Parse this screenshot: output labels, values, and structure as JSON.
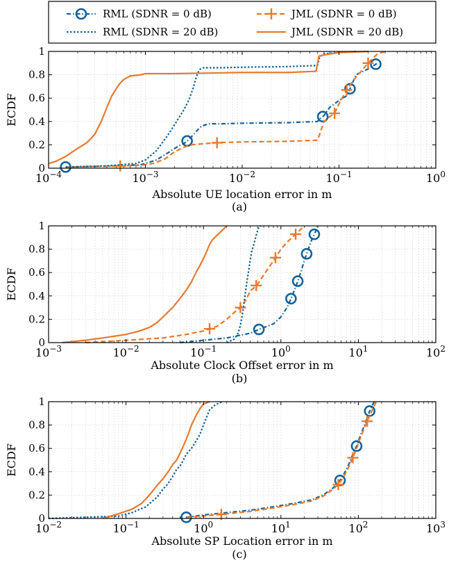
{
  "legend": {
    "entries": [
      {
        "label": "RML (SDNR = 0 dB)",
        "series": "rml0"
      },
      {
        "label": "JML (SDNR = 0 dB)",
        "series": "jml0"
      },
      {
        "label": "RML (SDNR = 20 dB)",
        "series": "rml20"
      },
      {
        "label": "JML (SDNR = 20 dB)",
        "series": "jml20"
      }
    ]
  },
  "colors": {
    "rml": "#16629a",
    "jml": "#e8792c",
    "grid": "#c8c8c8"
  },
  "chart_data": [
    {
      "type": "line",
      "panel_label": "(a)",
      "xlabel": "Absolute UE location error in m",
      "ylabel": "ECDF",
      "xscale": "log",
      "xlim": [
        0.0001,
        1
      ],
      "ylim": [
        0,
        1
      ],
      "xticks": [
        {
          "value": 0.0001,
          "base": "10",
          "exp": "−4"
        },
        {
          "value": 0.001,
          "base": "10",
          "exp": "−3"
        },
        {
          "value": 0.01,
          "base": "10",
          "exp": "−2"
        },
        {
          "value": 0.1,
          "base": "10",
          "exp": "−1"
        },
        {
          "value": 1,
          "base": "10",
          "exp": "0"
        }
      ],
      "yticks": [
        "0",
        "0.2",
        "0.4",
        "0.6",
        "0.8",
        "1"
      ],
      "grid": true,
      "series": [
        {
          "key": "rml0",
          "style": "dashdot-circle",
          "color": "rml",
          "x": [
            0.00015,
            0.0003,
            0.0006,
            0.0009,
            0.0013,
            0.0017,
            0.0022,
            0.0026,
            0.003,
            0.0034,
            0.0038,
            0.0045,
            0.006,
            0.01,
            0.03,
            0.06,
            0.065,
            0.07,
            0.08,
            0.1,
            0.12,
            0.13,
            0.15,
            0.2,
            0.25
          ],
          "y": [
            0.01,
            0.015,
            0.02,
            0.03,
            0.07,
            0.13,
            0.19,
            0.22,
            0.27,
            0.32,
            0.36,
            0.38,
            0.38,
            0.385,
            0.39,
            0.4,
            0.43,
            0.45,
            0.52,
            0.58,
            0.62,
            0.68,
            0.8,
            0.85,
            0.9
          ],
          "markers_x": [
            0.00015,
            0.0027,
            0.068,
            0.13,
            0.24
          ]
        },
        {
          "key": "jml0",
          "style": "dashed-plus",
          "color": "jml",
          "x": [
            0.00015,
            0.0003,
            0.0006,
            0.0009,
            0.0012,
            0.0016,
            0.002,
            0.0025,
            0.003,
            0.004,
            0.006,
            0.01,
            0.03,
            0.06,
            0.065,
            0.07,
            0.08,
            0.09,
            0.1,
            0.12,
            0.15,
            0.2,
            0.25,
            0.3
          ],
          "y": [
            0.01,
            0.015,
            0.02,
            0.025,
            0.04,
            0.08,
            0.14,
            0.18,
            0.2,
            0.21,
            0.22,
            0.225,
            0.23,
            0.24,
            0.32,
            0.4,
            0.44,
            0.47,
            0.55,
            0.67,
            0.78,
            0.9,
            0.98,
            1.0
          ],
          "markers_x": [
            0.00055,
            0.0055,
            0.09,
            0.12,
            0.2
          ]
        },
        {
          "key": "rml20",
          "style": "dotted",
          "color": "rml",
          "x": [
            0.00015,
            0.0004,
            0.0008,
            0.001,
            0.0013,
            0.0017,
            0.0021,
            0.0025,
            0.0028,
            0.0031,
            0.0033,
            0.0035,
            0.0037,
            0.004,
            0.006,
            0.01,
            0.03,
            0.06,
            0.063,
            0.07,
            0.1,
            0.15
          ],
          "y": [
            0.01,
            0.02,
            0.04,
            0.07,
            0.15,
            0.28,
            0.4,
            0.5,
            0.58,
            0.68,
            0.76,
            0.82,
            0.85,
            0.86,
            0.86,
            0.865,
            0.87,
            0.88,
            0.95,
            0.98,
            0.99,
            1.0
          ]
        },
        {
          "key": "jml20",
          "style": "solid",
          "color": "jml",
          "x": [
            0.0001,
            0.00012,
            0.00015,
            0.0002,
            0.00025,
            0.0003,
            0.00035,
            0.0004,
            0.00045,
            0.0005,
            0.00055,
            0.0006,
            0.0007,
            0.0009,
            0.001,
            0.002,
            0.005,
            0.01,
            0.03,
            0.058,
            0.062,
            0.07,
            0.1,
            0.2
          ],
          "y": [
            0.04,
            0.06,
            0.1,
            0.17,
            0.22,
            0.29,
            0.4,
            0.52,
            0.62,
            0.68,
            0.73,
            0.76,
            0.79,
            0.8,
            0.81,
            0.81,
            0.815,
            0.82,
            0.82,
            0.83,
            0.96,
            0.97,
            0.99,
            1.0
          ]
        }
      ]
    },
    {
      "type": "line",
      "panel_label": "(b)",
      "xlabel": "Absolute Clock Offset error in m",
      "ylabel": "ECDF",
      "xscale": "log",
      "xlim": [
        0.001,
        100
      ],
      "ylim": [
        0,
        1
      ],
      "xticks": [
        {
          "value": 0.001,
          "base": "10",
          "exp": "−3"
        },
        {
          "value": 0.01,
          "base": "10",
          "exp": "−2"
        },
        {
          "value": 0.1,
          "base": "10",
          "exp": "−1"
        },
        {
          "value": 1,
          "base": "10",
          "exp": "0"
        },
        {
          "value": 10,
          "base": "10",
          "exp": "1"
        },
        {
          "value": 100,
          "base": "10",
          "exp": "2"
        }
      ],
      "yticks": [
        "0",
        "0.2",
        "0.4",
        "0.6",
        "0.8",
        "1"
      ],
      "grid": true,
      "series": [
        {
          "key": "rml0",
          "style": "dashdot-circle",
          "color": "rml",
          "x": [
            0.05,
            0.2,
            0.4,
            0.55,
            0.8,
            1.0,
            1.2,
            1.4,
            1.6,
            1.8,
            2.0,
            2.2,
            2.5,
            2.8,
            3.0
          ],
          "y": [
            0.0,
            0.04,
            0.08,
            0.12,
            0.16,
            0.22,
            0.3,
            0.4,
            0.5,
            0.6,
            0.7,
            0.78,
            0.88,
            0.95,
            1.0
          ],
          "markers_x": [
            0.52,
            1.35,
            1.65,
            2.15,
            2.7
          ]
        },
        {
          "key": "jml0",
          "style": "dashed-plus",
          "color": "jml",
          "x": [
            0.003,
            0.01,
            0.03,
            0.06,
            0.1,
            0.15,
            0.2,
            0.25,
            0.3,
            0.35,
            0.4,
            0.5,
            0.6,
            0.8,
            1.0,
            1.2,
            1.5,
            1.8,
            2.0
          ],
          "y": [
            0.0,
            0.02,
            0.04,
            0.07,
            0.1,
            0.14,
            0.2,
            0.26,
            0.3,
            0.36,
            0.44,
            0.5,
            0.58,
            0.7,
            0.8,
            0.86,
            0.92,
            0.97,
            1.0
          ],
          "markers_x": [
            0.12,
            0.3,
            0.48,
            0.85,
            1.55
          ]
        },
        {
          "key": "rml20",
          "style": "dotted",
          "color": "rml",
          "x": [
            0.2,
            0.25,
            0.28,
            0.3,
            0.32,
            0.34,
            0.36,
            0.38,
            0.4,
            0.42,
            0.45,
            0.48,
            0.5,
            0.52,
            0.55
          ],
          "y": [
            0.0,
            0.03,
            0.08,
            0.15,
            0.25,
            0.38,
            0.5,
            0.6,
            0.7,
            0.78,
            0.85,
            0.92,
            0.96,
            0.99,
            1.0
          ]
        },
        {
          "key": "jml20",
          "style": "solid",
          "color": "jml",
          "x": [
            0.0015,
            0.003,
            0.005,
            0.01,
            0.015,
            0.02,
            0.025,
            0.03,
            0.04,
            0.05,
            0.06,
            0.07,
            0.08,
            0.09,
            0.1,
            0.11,
            0.12,
            0.13,
            0.15,
            0.18,
            0.2
          ],
          "y": [
            0.0,
            0.02,
            0.04,
            0.07,
            0.1,
            0.13,
            0.17,
            0.22,
            0.3,
            0.38,
            0.45,
            0.52,
            0.6,
            0.66,
            0.72,
            0.78,
            0.84,
            0.88,
            0.92,
            0.97,
            1.0
          ]
        }
      ]
    },
    {
      "type": "line",
      "panel_label": "(c)",
      "xlabel": "Absolute SP Location error in m",
      "ylabel": "ECDF",
      "xscale": "log",
      "xlim": [
        0.01,
        1000
      ],
      "ylim": [
        0,
        1
      ],
      "xticks": [
        {
          "value": 0.01,
          "base": "10",
          "exp": "−2"
        },
        {
          "value": 0.1,
          "base": "10",
          "exp": "−1"
        },
        {
          "value": 1,
          "base": "10",
          "exp": "0"
        },
        {
          "value": 10,
          "base": "10",
          "exp": "1"
        },
        {
          "value": 100,
          "base": "10",
          "exp": "2"
        },
        {
          "value": 1000,
          "base": "10",
          "exp": "3"
        }
      ],
      "yticks": [
        "0",
        "0.2",
        "0.4",
        "0.6",
        "0.8",
        "1"
      ],
      "grid": true,
      "series": [
        {
          "key": "rml0",
          "style": "dashdot-circle",
          "color": "rml",
          "x": [
            0.6,
            1.0,
            2.0,
            4.0,
            8.0,
            15,
            25,
            35,
            45,
            55,
            65,
            75,
            85,
            95,
            105,
            120,
            140,
            160
          ],
          "y": [
            0.01,
            0.03,
            0.05,
            0.07,
            0.1,
            0.13,
            0.16,
            0.2,
            0.25,
            0.3,
            0.38,
            0.46,
            0.55,
            0.62,
            0.7,
            0.8,
            0.92,
            1.0
          ],
          "markers_x": [
            0.6,
            58,
            95,
            140
          ]
        },
        {
          "key": "jml0",
          "style": "dashed-plus",
          "color": "jml",
          "x": [
            0.6,
            1.0,
            2.0,
            4.0,
            8.0,
            15,
            25,
            35,
            45,
            55,
            65,
            75,
            85,
            95,
            105,
            120,
            140,
            170
          ],
          "y": [
            0.01,
            0.02,
            0.04,
            0.06,
            0.09,
            0.12,
            0.15,
            0.19,
            0.24,
            0.29,
            0.36,
            0.44,
            0.52,
            0.6,
            0.68,
            0.78,
            0.88,
            1.0
          ],
          "markers_x": [
            1.7,
            55,
            85,
            130
          ]
        },
        {
          "key": "rml20",
          "style": "dotted",
          "color": "rml",
          "x": [
            0.01,
            0.03,
            0.08,
            0.12,
            0.18,
            0.25,
            0.3,
            0.35,
            0.4,
            0.45,
            0.5,
            0.55,
            0.6,
            0.7,
            0.8,
            0.9,
            1.0,
            1.1,
            1.2,
            1.4,
            1.6,
            1.8
          ],
          "y": [
            0.0,
            0.01,
            0.02,
            0.05,
            0.1,
            0.18,
            0.25,
            0.3,
            0.36,
            0.42,
            0.45,
            0.5,
            0.55,
            0.6,
            0.66,
            0.72,
            0.8,
            0.87,
            0.93,
            0.97,
            0.99,
            1.0
          ]
        },
        {
          "key": "jml20",
          "style": "solid",
          "color": "jml",
          "x": [
            0.05,
            0.08,
            0.12,
            0.16,
            0.2,
            0.25,
            0.3,
            0.35,
            0.4,
            0.45,
            0.5,
            0.55,
            0.6,
            0.65,
            0.7,
            0.8,
            0.9,
            1.0,
            1.2
          ],
          "y": [
            0.0,
            0.04,
            0.08,
            0.13,
            0.2,
            0.28,
            0.34,
            0.4,
            0.46,
            0.5,
            0.56,
            0.62,
            0.68,
            0.74,
            0.8,
            0.88,
            0.94,
            0.98,
            1.0
          ]
        }
      ]
    }
  ]
}
